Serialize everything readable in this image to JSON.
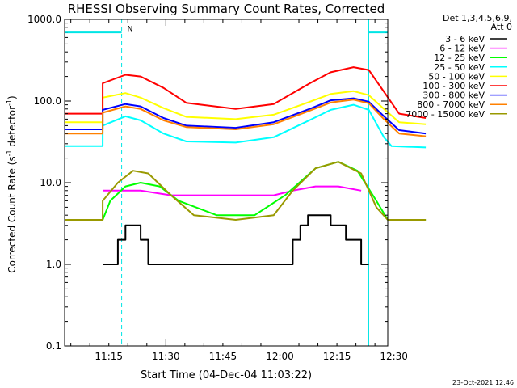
{
  "chart_data": {
    "type": "line",
    "title": "RHESSI Observing Summary Count Rates, Corrected",
    "xlabel": "Start Time (04-Dec-04 11:03:22)",
    "ylabel_main": "Corrected Count Rate (s",
    "ylabel_sup1": "-1",
    "ylabel_mid": " detector",
    "ylabel_sup2": "-1",
    "ylabel_end": ")",
    "yscale": "log",
    "ylim": [
      0.1,
      1000
    ],
    "xlim_minutes": [
      0,
      85
    ],
    "ytick_labels": [
      {
        "value": 1000,
        "label": "1000.0"
      },
      {
        "value": 100,
        "label": "100.0"
      },
      {
        "value": 10,
        "label": "10.0"
      },
      {
        "value": 1,
        "label": "1.0"
      },
      {
        "value": 0.1,
        "label": "0.1"
      }
    ],
    "xtick_labels": [
      {
        "minute": 11.63,
        "label": "11:15"
      },
      {
        "minute": 26.63,
        "label": "11:30"
      },
      {
        "minute": 41.63,
        "label": "11:45"
      },
      {
        "minute": 56.63,
        "label": "12:00"
      },
      {
        "minute": 71.63,
        "label": "12:15"
      },
      {
        "minute": 86.63,
        "label": "12:30"
      }
    ],
    "legend_header": [
      "Det 1,3,4,5,6,9,",
      "Att 0"
    ],
    "legend_placement": "right",
    "markers": {
      "flag_label": "N",
      "flag_level": 700,
      "flag_segments": [
        [
          0,
          15
        ],
        [
          80,
          95
        ]
      ],
      "dashed_lines": [
        15,
        95
      ],
      "solid_lines": [
        0,
        80
      ]
    },
    "series": [
      {
        "name": "3 - 6 keV",
        "color": "#000000",
        "style": "steps",
        "points": [
          [
            10,
            1
          ],
          [
            14,
            1
          ],
          [
            14,
            2
          ],
          [
            16,
            2
          ],
          [
            16,
            3
          ],
          [
            20,
            3
          ],
          [
            20,
            2
          ],
          [
            22,
            2
          ],
          [
            22,
            1
          ],
          [
            28,
            1
          ],
          [
            60,
            1
          ],
          [
            60,
            2
          ],
          [
            62,
            2
          ],
          [
            62,
            3
          ],
          [
            64,
            3
          ],
          [
            64,
            4
          ],
          [
            70,
            4
          ],
          [
            70,
            3
          ],
          [
            74,
            3
          ],
          [
            74,
            2
          ],
          [
            78,
            2
          ],
          [
            78,
            1
          ],
          [
            80,
            1
          ]
        ]
      },
      {
        "name": "6 - 12 keV",
        "color": "#ff00ff",
        "style": "line",
        "points": [
          [
            10,
            8
          ],
          [
            13,
            8
          ],
          [
            20,
            8
          ],
          [
            28,
            7
          ],
          [
            40,
            7
          ],
          [
            55,
            7
          ],
          [
            60,
            8
          ],
          [
            66,
            9
          ],
          [
            72,
            9
          ],
          [
            78,
            8
          ]
        ]
      },
      {
        "name": "12 - 25 keV",
        "color": "#00ff00",
        "style": "line",
        "points": [
          [
            0,
            3.5
          ],
          [
            10,
            3.5
          ],
          [
            12,
            6
          ],
          [
            16,
            9
          ],
          [
            20,
            10
          ],
          [
            25,
            9
          ],
          [
            30,
            6
          ],
          [
            40,
            4
          ],
          [
            50,
            4
          ],
          [
            58,
            7
          ],
          [
            66,
            15
          ],
          [
            72,
            18
          ],
          [
            77,
            14
          ],
          [
            82,
            6
          ],
          [
            85,
            3.5
          ],
          [
            95,
            3.5
          ]
        ]
      },
      {
        "name": "25 - 50 keV",
        "color": "#00ffff",
        "style": "line",
        "points": [
          [
            0,
            28
          ],
          [
            10,
            28
          ],
          [
            10,
            50
          ],
          [
            16,
            65
          ],
          [
            20,
            58
          ],
          [
            26,
            40
          ],
          [
            32,
            32
          ],
          [
            45,
            31
          ],
          [
            55,
            36
          ],
          [
            65,
            60
          ],
          [
            70,
            78
          ],
          [
            76,
            90
          ],
          [
            80,
            78
          ],
          [
            84,
            36
          ],
          [
            86,
            28
          ],
          [
            95,
            27
          ]
        ]
      },
      {
        "name": "50 - 100 keV",
        "color": "#ffff00",
        "style": "line",
        "points": [
          [
            0,
            55
          ],
          [
            10,
            55
          ],
          [
            10,
            110
          ],
          [
            16,
            125
          ],
          [
            20,
            110
          ],
          [
            26,
            82
          ],
          [
            32,
            64
          ],
          [
            45,
            60
          ],
          [
            55,
            68
          ],
          [
            65,
            100
          ],
          [
            70,
            122
          ],
          [
            76,
            132
          ],
          [
            80,
            118
          ],
          [
            84,
            80
          ],
          [
            88,
            55
          ],
          [
            95,
            52
          ]
        ]
      },
      {
        "name": "100 - 300 keV",
        "color": "#ff0000",
        "style": "line",
        "points": [
          [
            0,
            70
          ],
          [
            10,
            70
          ],
          [
            10,
            165
          ],
          [
            16,
            210
          ],
          [
            20,
            200
          ],
          [
            26,
            145
          ],
          [
            32,
            95
          ],
          [
            45,
            80
          ],
          [
            55,
            92
          ],
          [
            65,
            170
          ],
          [
            70,
            225
          ],
          [
            76,
            260
          ],
          [
            80,
            240
          ],
          [
            84,
            130
          ],
          [
            88,
            70
          ],
          [
            95,
            62
          ]
        ]
      },
      {
        "name": "300 - 800 keV",
        "color": "#0000ff",
        "style": "line",
        "points": [
          [
            0,
            45
          ],
          [
            10,
            45
          ],
          [
            10,
            78
          ],
          [
            16,
            92
          ],
          [
            20,
            86
          ],
          [
            26,
            62
          ],
          [
            32,
            50
          ],
          [
            45,
            47
          ],
          [
            55,
            55
          ],
          [
            65,
            82
          ],
          [
            70,
            102
          ],
          [
            76,
            108
          ],
          [
            80,
            98
          ],
          [
            84,
            65
          ],
          [
            88,
            44
          ],
          [
            95,
            40
          ]
        ]
      },
      {
        "name": "800 - 7000 keV",
        "color": "#ff8000",
        "style": "line",
        "points": [
          [
            0,
            40
          ],
          [
            10,
            40
          ],
          [
            10,
            72
          ],
          [
            16,
            86
          ],
          [
            20,
            80
          ],
          [
            26,
            58
          ],
          [
            32,
            48
          ],
          [
            45,
            45
          ],
          [
            55,
            52
          ],
          [
            65,
            78
          ],
          [
            70,
            96
          ],
          [
            76,
            104
          ],
          [
            80,
            94
          ],
          [
            84,
            60
          ],
          [
            88,
            40
          ],
          [
            95,
            37
          ]
        ]
      },
      {
        "name": "7000 - 15000 keV",
        "color": "#999900",
        "style": "line",
        "points": [
          [
            0,
            3.5
          ],
          [
            10,
            3.5
          ],
          [
            10,
            6
          ],
          [
            14,
            10
          ],
          [
            18,
            14
          ],
          [
            22,
            13
          ],
          [
            28,
            7
          ],
          [
            34,
            4
          ],
          [
            45,
            3.5
          ],
          [
            55,
            4
          ],
          [
            60,
            8
          ],
          [
            66,
            15
          ],
          [
            72,
            18
          ],
          [
            78,
            13
          ],
          [
            82,
            5
          ],
          [
            85,
            3.5
          ],
          [
            95,
            3.5
          ]
        ]
      }
    ]
  },
  "footer": {
    "timestamp": "23-Oct-2021 12:46"
  }
}
